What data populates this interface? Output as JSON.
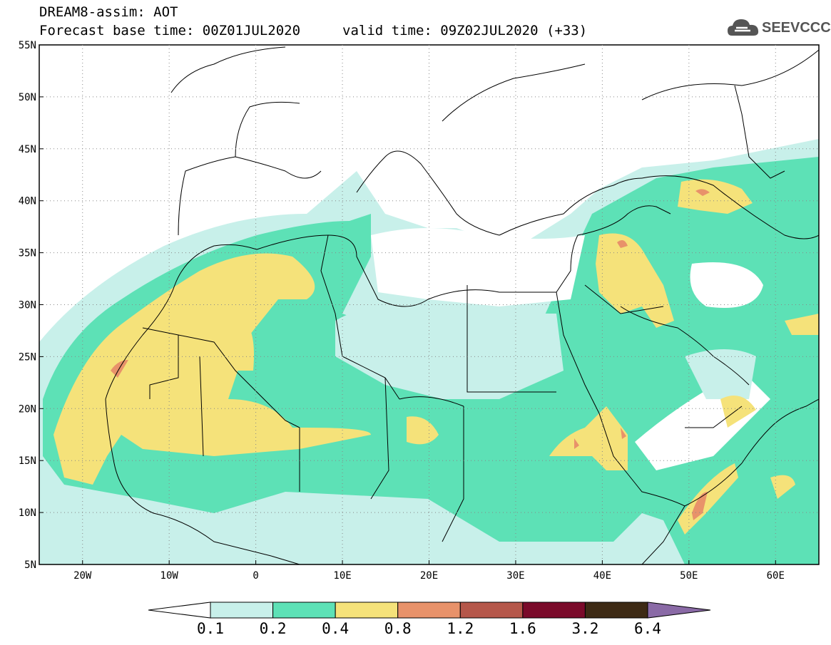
{
  "header": {
    "line1": "DREAM8-assim: AOT",
    "line2": "Forecast base time: 00Z01JUL2020",
    "valid": "valid time: 09Z02JUL2020 (+33)"
  },
  "logo": {
    "text": "SEEVCCC",
    "icon": "cloud-icon",
    "color": "#555555"
  },
  "map": {
    "lon_range": [
      -25,
      65
    ],
    "lat_range": [
      5,
      55
    ],
    "lat_ticks": [
      "55N",
      "50N",
      "45N",
      "40N",
      "35N",
      "30N",
      "25N",
      "20N",
      "15N",
      "10N",
      "5N"
    ],
    "lon_ticks": [
      "20W",
      "10W",
      "0",
      "10E",
      "20E",
      "30E",
      "40E",
      "50E",
      "60E"
    ]
  },
  "colorbar": {
    "labels": [
      "0.1",
      "0.2",
      "0.4",
      "0.8",
      "1.2",
      "1.6",
      "3.2",
      "6.4"
    ],
    "colors": [
      "#c8f0ea",
      "#5de1b6",
      "#f5e27a",
      "#e8926a",
      "#b5574a",
      "#7a0a2a",
      "#3d2a14",
      "#8a6aa6"
    ],
    "under_color": "#ffffff"
  }
}
